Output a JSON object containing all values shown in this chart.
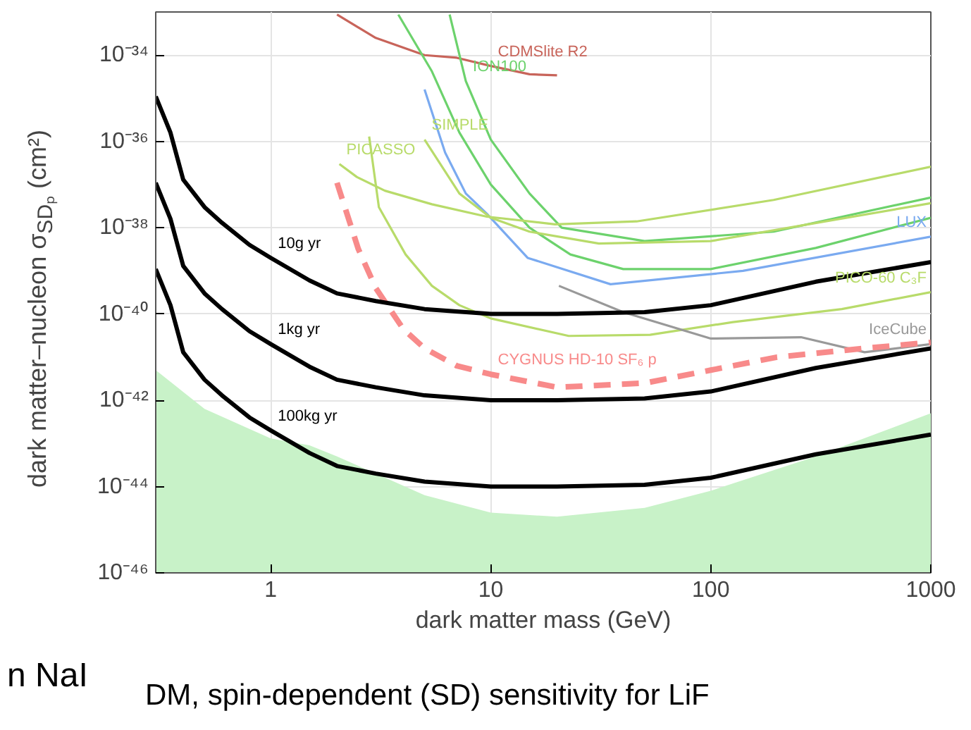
{
  "chart_data": {
    "type": "line",
    "xlabel": "dark matter mass (GeV)",
    "ylabel": "dark matter–nucleon σ$_{SDₚ}$ (cm²)",
    "log": "xy",
    "grid": true,
    "xlim": [
      0.3,
      1000
    ],
    "ylim": [
      1e-46,
      1e-33
    ],
    "xticks": [
      1,
      10,
      100,
      1000
    ],
    "yticks": [
      {
        "value": 1e-46,
        "label": "10⁻⁴⁶"
      },
      {
        "value": 1e-44,
        "label": "10⁻⁴⁴"
      },
      {
        "value": 1e-42,
        "label": "10⁻⁴²"
      },
      {
        "value": 1e-40,
        "label": "10⁻⁴⁰"
      },
      {
        "value": 1e-38,
        "label": "10⁻³⁸"
      },
      {
        "value": 1e-36,
        "label": "10⁻³⁶"
      },
      {
        "value": 1e-34,
        "label": "10⁻³⁴"
      }
    ],
    "series": [
      {
        "type": "area",
        "color": "#c8f2c8",
        "x": [
          0.3,
          0.5,
          1,
          1.5,
          2,
          3,
          5,
          10,
          20,
          50,
          100,
          300,
          1000
        ],
        "values": [
          5e-42,
          6.3e-43,
          1.3e-43,
          9e-44,
          5e-44,
          2e-44,
          6.3e-45,
          2.5e-45,
          2e-45,
          3.2e-45,
          8e-45,
          5e-44,
          5e-43
        ]
      },
      {
        "color": "#c8645a",
        "x": [
          2,
          3,
          5,
          7,
          10,
          15,
          20
        ],
        "values": [
          8.7e-34,
          2.5e-34,
          1e-34,
          8.7e-35,
          5.6e-35,
          3.6e-35,
          3.4e-35
        ]
      },
      {
        "color": "#6cd26c",
        "x": [
          3.8,
          5.4,
          7.2,
          10,
          15,
          23,
          40,
          100,
          300,
          1000
        ],
        "values": [
          8.7e-34,
          4.2e-35,
          1.6e-36,
          1e-37,
          1e-38,
          2.4e-39,
          1.1e-39,
          1.1e-39,
          3.4e-39,
          1.7e-38
        ]
      },
      {
        "color": "#6cd26c",
        "x": [
          6.5,
          7.7,
          10,
          15,
          21,
          50,
          193,
          1000
        ],
        "values": [
          8.7e-34,
          2.5e-35,
          1.1e-36,
          6.2e-38,
          1e-38,
          4.9e-39,
          8.1e-39,
          5e-38
        ]
      },
      {
        "color": "#7aaaf0",
        "x": [
          5,
          6.2,
          7.7,
          9.6,
          14.7,
          35,
          140,
          1000
        ],
        "values": [
          1.6e-35,
          5.5e-37,
          6.2e-38,
          2.1e-38,
          2e-39,
          4.9e-40,
          1e-39,
          6.2e-39
        ]
      },
      {
        "color": "#b8db6a",
        "x": [
          2.05,
          2.46,
          3.3,
          5.4,
          9.6,
          19.6,
          46,
          193,
          1000
        ],
        "values": [
          3e-37,
          1.5e-37,
          7.2e-38,
          3.5e-38,
          1.8e-38,
          1.2e-38,
          1.4e-38,
          4.4e-38,
          2.6e-37
        ]
      },
      {
        "color": "#b8db6a",
        "x": [
          5,
          7.2,
          10,
          15,
          31,
          100,
          1000
        ],
        "values": [
          1.1e-36,
          6.2e-38,
          1.7e-38,
          8.1e-39,
          4.3e-39,
          4.9e-39,
          3.7e-38
        ]
      },
      {
        "color": "#b8db6a",
        "x": [
          2.8,
          3.1,
          4.1,
          5.4,
          7.2,
          10,
          22.6,
          53,
          126,
          394,
          1000
        ],
        "values": [
          1.3e-36,
          3e-38,
          2.4e-39,
          4.5e-40,
          1.6e-40,
          7.9e-41,
          3.1e-41,
          3.3e-41,
          6.5e-41,
          1.3e-40,
          3.2e-40
        ]
      },
      {
        "color": "#999999",
        "x": [
          20.4,
          40,
          100,
          257,
          500,
          1000
        ],
        "values": [
          4.5e-40,
          1.1e-40,
          2.7e-41,
          2.9e-41,
          1.3e-41,
          2e-41
        ]
      },
      {
        "color": "#f88a8a",
        "line_style": "dashed",
        "x": [
          2,
          2.5,
          3,
          4,
          5,
          7,
          10,
          20,
          50,
          100,
          200,
          500,
          1000
        ],
        "values": [
          1.1e-37,
          3.2e-39,
          4e-40,
          4.5e-41,
          1.6e-41,
          6.3e-42,
          4e-42,
          2e-42,
          2.5e-42,
          5e-42,
          1e-41,
          1.6e-41,
          2.2e-41
        ]
      },
      {
        "color": "#000000",
        "x": [
          0.3,
          0.35,
          0.4,
          0.5,
          0.6,
          0.8,
          1,
          1.5,
          2,
          3,
          5,
          10,
          20,
          50,
          100,
          300,
          1000
        ],
        "values": [
          1.1e-35,
          1.6e-36,
          1.3e-37,
          3e-38,
          1.3e-38,
          4e-39,
          2e-39,
          6e-40,
          3e-40,
          2e-40,
          1.3e-40,
          1e-40,
          1e-40,
          1.1e-40,
          1.6e-40,
          5.6e-40,
          1.6e-39
        ]
      },
      {
        "color": "#000000",
        "x": [
          0.3,
          0.35,
          0.4,
          0.5,
          0.6,
          0.8,
          1,
          1.5,
          2,
          3,
          5,
          10,
          20,
          50,
          100,
          300,
          1000
        ],
        "values": [
          1.1e-37,
          1.6e-38,
          1.3e-39,
          3e-40,
          1.3e-40,
          4e-41,
          2e-41,
          6e-42,
          3e-42,
          2e-42,
          1.3e-42,
          1e-42,
          1e-42,
          1.1e-42,
          1.6e-42,
          5.6e-42,
          1.6e-41
        ]
      },
      {
        "color": "#000000",
        "x": [
          0.3,
          0.35,
          0.4,
          0.5,
          0.6,
          0.8,
          1,
          1.5,
          2,
          3,
          5,
          10,
          20,
          50,
          100,
          300,
          1000
        ],
        "values": [
          1.1e-39,
          1.6e-40,
          1.3e-41,
          3e-42,
          1.3e-42,
          4e-43,
          2e-43,
          6e-44,
          3e-44,
          2e-44,
          1.3e-44,
          1e-44,
          1e-44,
          1.1e-44,
          1.6e-44,
          5.6e-44,
          1.6e-43
        ]
      }
    ],
    "annotations": [
      {
        "text": "10g yr",
        "x": 1,
        "y": 2e-39
      },
      {
        "text": "1kg yr",
        "x": 1,
        "y": 2e-41
      },
      {
        "text": "100kg yr",
        "x": 1,
        "y": 2e-43
      },
      {
        "text": "CDMSlite R2",
        "x": 10,
        "y": 5.6e-35
      },
      {
        "text": "ION100",
        "x": 7.7,
        "y": 2.5e-35
      },
      {
        "text": "SIMPLE",
        "x": 5,
        "y": 1.1e-36
      },
      {
        "text": "PICASSO",
        "x": 2.05,
        "y": 3e-37
      },
      {
        "text": "LUX",
        "x": 1000,
        "y": 6.2e-39
      },
      {
        "text": "PICO-60 C₃F",
        "x": 1000,
        "y": 3.2e-40
      },
      {
        "text": "IceCube",
        "x": 1000,
        "y": 2e-41
      },
      {
        "text": "CYGNUS HD-10 SF₆ p",
        "x": 10,
        "y": 4e-42
      },
      "n NaI",
      "DM, spin-dependent (SD) sensitivity for LiF"
    ]
  }
}
